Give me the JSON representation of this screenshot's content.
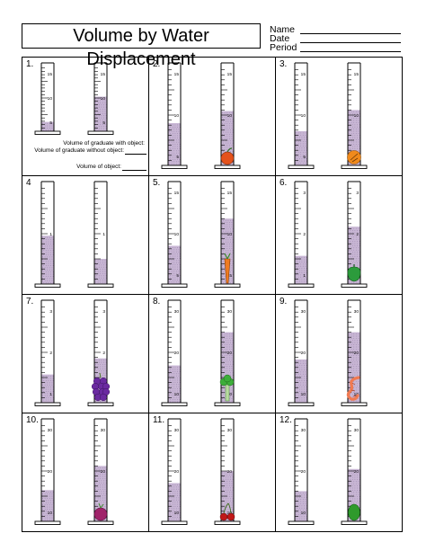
{
  "header": {
    "title": "Volume by Water Displacement",
    "fields": [
      {
        "label": "Name"
      },
      {
        "label": "Date"
      },
      {
        "label": "Period"
      }
    ]
  },
  "worksheet_labels": {
    "with_object": "Volume of graduate with object:",
    "without_object": "Volume of graduate without object:",
    "of_object": "Volume of object:"
  },
  "colors": {
    "water": "#c8b6d4",
    "water_dot": "#9b86ad"
  },
  "problems": [
    {
      "number": "1.",
      "left": {
        "ticks": [
          "15",
          "10",
          "5"
        ],
        "level": 0.14
      },
      "right": {
        "ticks": [
          "15",
          "10",
          "5"
        ],
        "level": 0.52
      },
      "object": "none"
    },
    {
      "number": "2.",
      "left": {
        "ticks": [
          "15",
          "10",
          "5"
        ],
        "level": 0.42
      },
      "right": {
        "ticks": [
          "15",
          "10",
          "5"
        ],
        "level": 0.54
      },
      "object": "apple-icon"
    },
    {
      "number": "3.",
      "left": {
        "ticks": [
          "15",
          "10",
          "5"
        ],
        "level": 0.34
      },
      "right": {
        "ticks": [
          "15",
          "10",
          "5"
        ],
        "level": 0.55
      },
      "object": "orange-slice-icon"
    },
    {
      "number": "4",
      "left": {
        "ticks": [
          "1"
        ],
        "level": 0.48
      },
      "right": {
        "ticks": [
          "1"
        ],
        "level": 0.25
      },
      "object": "none"
    },
    {
      "number": "5.",
      "left": {
        "ticks": [
          "15",
          "10",
          "5"
        ],
        "level": 0.38
      },
      "right": {
        "ticks": [
          "15",
          "10",
          "5"
        ],
        "level": 0.65
      },
      "object": "carrot-icon"
    },
    {
      "number": "6.",
      "left": {
        "ticks": [
          "3",
          "2",
          "1"
        ],
        "level": 0.28
      },
      "right": {
        "ticks": [
          "3",
          "2",
          "1"
        ],
        "level": 0.57
      },
      "object": "bell-pepper-icon"
    },
    {
      "number": "7.",
      "left": {
        "ticks": [
          "3",
          "2",
          "1"
        ],
        "level": 0.28
      },
      "right": {
        "ticks": [
          "3",
          "2",
          "1"
        ],
        "level": 0.44
      },
      "object": "grapes-icon"
    },
    {
      "number": "8.",
      "left": {
        "ticks": [
          "30",
          "20",
          "10"
        ],
        "level": 0.37
      },
      "right": {
        "ticks": [
          "30",
          "20",
          "10"
        ],
        "level": 0.7
      },
      "object": "broccoli-icon"
    },
    {
      "number": "9.",
      "left": {
        "ticks": [
          "30",
          "20",
          "10"
        ],
        "level": 0.43
      },
      "right": {
        "ticks": [
          "30",
          "20",
          "10"
        ],
        "level": 0.7
      },
      "object": "shrimp-icon"
    },
    {
      "number": "10.",
      "left": {
        "ticks": [
          "30",
          "20",
          "10"
        ],
        "level": 0.31
      },
      "right": {
        "ticks": [
          "30",
          "20",
          "10"
        ],
        "level": 0.55
      },
      "object": "radish-icon"
    },
    {
      "number": "11.",
      "left": {
        "ticks": [
          "30",
          "20",
          "10"
        ],
        "level": 0.38
      },
      "right": {
        "ticks": [
          "30",
          "20",
          "10"
        ],
        "level": 0.5
      },
      "object": "cherries-icon"
    },
    {
      "number": "12.",
      "left": {
        "ticks": [
          "30",
          "20",
          "10"
        ],
        "level": 0.3
      },
      "right": {
        "ticks": [
          "30",
          "20",
          "10"
        ],
        "level": 0.52
      },
      "object": "lime-icon"
    }
  ]
}
